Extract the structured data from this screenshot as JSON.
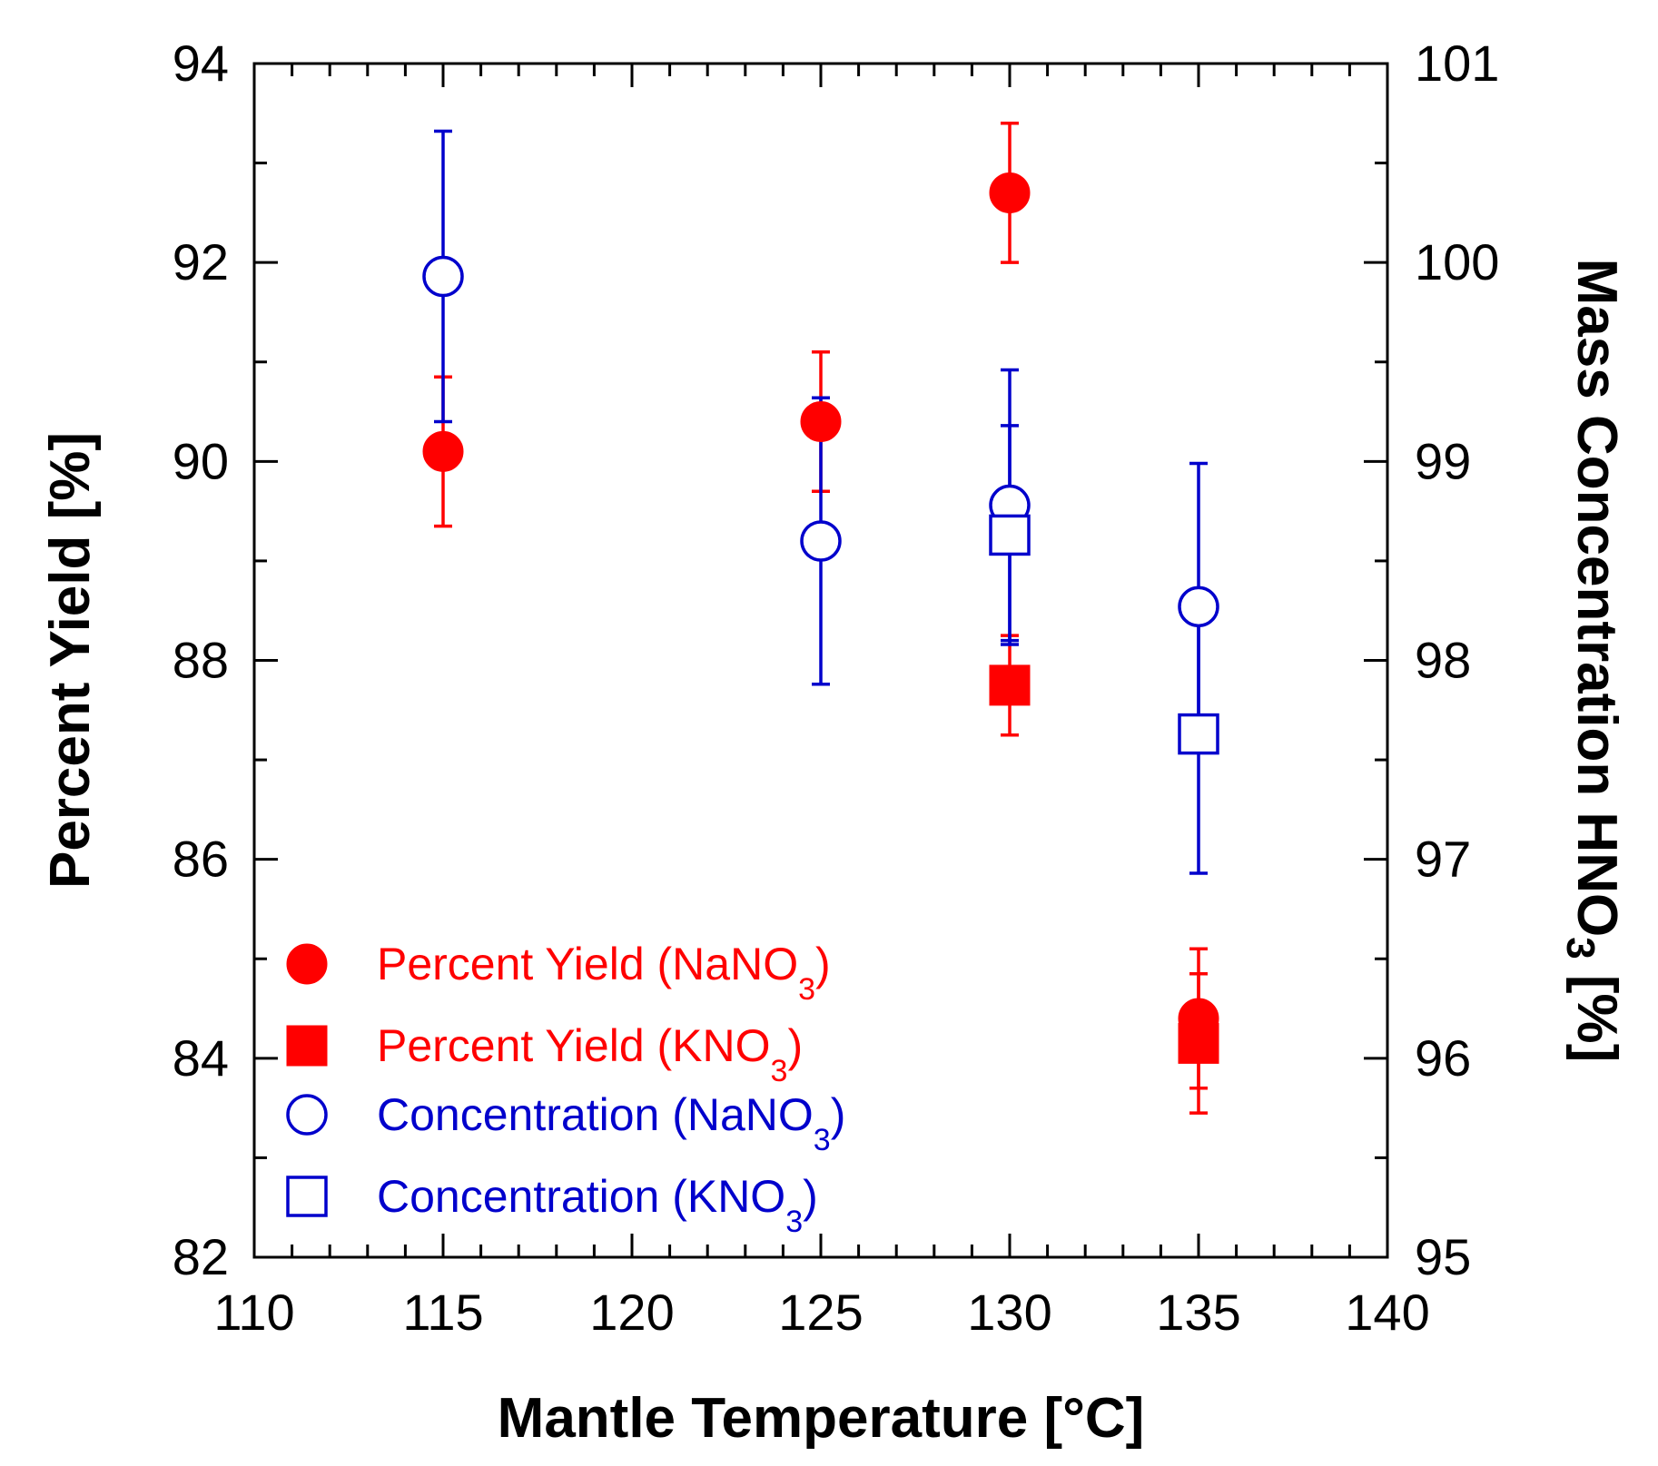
{
  "chart_data": {
    "type": "scatter",
    "title": "",
    "xlabel": "Mantle Temperature [°C]",
    "ylabel": "Percent Yield [%]",
    "y2label": "Mass Concentration HNO",
    "y2label_sub": "3",
    "y2label_suffix": " [%]",
    "xlim": [
      110,
      140
    ],
    "ylim": [
      82,
      94
    ],
    "y2lim": [
      95,
      101
    ],
    "xticks": [
      "110",
      "115",
      "120",
      "125",
      "130",
      "135",
      "140"
    ],
    "yticks": [
      "82",
      "84",
      "86",
      "88",
      "90",
      "92",
      "94"
    ],
    "y2ticks": [
      "95",
      "96",
      "97",
      "98",
      "99",
      "100",
      "101"
    ],
    "legend_position": "bottom-left",
    "colors": {
      "yield": "#ff0000",
      "concentration": "#0000cc",
      "axis": "#000000"
    },
    "series": [
      {
        "name": "Percent Yield (NaNO",
        "sub": "3",
        "suffix": ")",
        "axis": "left",
        "marker": "circle-filled",
        "color": "#ff0000",
        "x": [
          115,
          125,
          130,
          135
        ],
        "y": [
          90.1,
          90.4,
          92.7,
          84.4
        ],
        "err": [
          0.75,
          0.7,
          0.7,
          0.7
        ]
      },
      {
        "name": "Percent Yield (KNO",
        "sub": "3",
        "suffix": ")",
        "axis": "left",
        "marker": "square-filled",
        "color": "#ff0000",
        "x": [
          130,
          135
        ],
        "y": [
          87.75,
          84.15
        ],
        "err": [
          0.5,
          0.7
        ]
      },
      {
        "name": "Concentration (NaNO",
        "sub": "3",
        "suffix": ")",
        "axis": "right",
        "marker": "circle-open",
        "color": "#0000cc",
        "x": [
          115,
          125,
          130,
          135
        ],
        "y": [
          99.93,
          98.6,
          98.78,
          98.27
        ],
        "err": [
          0.73,
          0.72,
          0.68,
          0.72
        ]
      },
      {
        "name": "Concentration (KNO",
        "sub": "3",
        "suffix": ")",
        "axis": "right",
        "marker": "square-open",
        "color": "#0000cc",
        "x": [
          130,
          135
        ],
        "y": [
          98.63,
          97.63
        ],
        "err": [
          0.55,
          0.7
        ]
      }
    ]
  }
}
